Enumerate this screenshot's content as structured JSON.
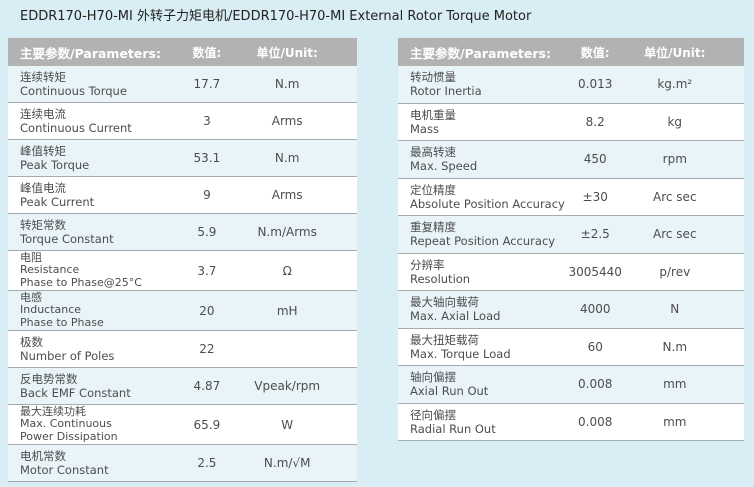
{
  "title": "EDDR170-H70-MI 外转子力矩电机/EDDR170-H70-MI External Rotor Torque Motor",
  "table_header": {
    "parameters": "主要参数/Parameters:",
    "value": "数值:",
    "unit": "单位/Unit:"
  },
  "left_table": {
    "rows": [
      {
        "label_lines": [
          "连续转矩",
          "Continuous Torque"
        ],
        "value": "17.7",
        "unit": "N.m"
      },
      {
        "label_lines": [
          "连续电流",
          "Continuous Current"
        ],
        "value": "3",
        "unit": "Arms"
      },
      {
        "label_lines": [
          "峰值转矩",
          "Peak Torque"
        ],
        "value": "53.1",
        "unit": "N.m"
      },
      {
        "label_lines": [
          "峰值电流",
          "Peak Current"
        ],
        "value": "9",
        "unit": "Arms"
      },
      {
        "label_lines": [
          "转矩常数",
          "Torque Constant"
        ],
        "value": "5.9",
        "unit": "N.m/Arms"
      },
      {
        "label_lines": [
          "电阻",
          "Resistance",
          "Phase to Phase@25°C"
        ],
        "value": "3.7",
        "unit": "Ω"
      },
      {
        "label_lines": [
          "电感",
          "Inductance",
          "Phase to Phase"
        ],
        "value": "20",
        "unit": "mH"
      },
      {
        "label_lines": [
          "极数",
          "Number of Poles"
        ],
        "value": "22",
        "unit": ""
      },
      {
        "label_lines": [
          "反电势常数",
          "Back EMF Constant"
        ],
        "value": "4.87",
        "unit": "Vpeak/rpm"
      },
      {
        "label_lines": [
          "最大连续功耗",
          "Max. Continuous",
          "Power Dissipation"
        ],
        "value": "65.9",
        "unit": "W"
      },
      {
        "label_lines": [
          "电机常数",
          "Motor Constant"
        ],
        "value": "2.5",
        "unit": "N.m/√M"
      }
    ]
  },
  "right_table": {
    "rows": [
      {
        "label_lines": [
          "转动惯量",
          "Rotor Inertia"
        ],
        "value": "0.013",
        "unit": "kg.m²"
      },
      {
        "label_lines": [
          "电机重量",
          "Mass"
        ],
        "value": "8.2",
        "unit": "kg"
      },
      {
        "label_lines": [
          "最高转速",
          "Max. Speed"
        ],
        "value": "450",
        "unit": "rpm"
      },
      {
        "label_lines": [
          "定位精度",
          "Absolute Position Accuracy"
        ],
        "value": "±30",
        "unit": "Arc sec"
      },
      {
        "label_lines": [
          "重复精度",
          "Repeat Position Accuracy"
        ],
        "value": "±2.5",
        "unit": "Arc sec"
      },
      {
        "label_lines": [
          "分辨率",
          "Resolution"
        ],
        "value": "3005440",
        "unit": "p/rev"
      },
      {
        "label_lines": [
          "最大轴向载荷",
          "Max. Axial Load"
        ],
        "value": "4000",
        "unit": "N"
      },
      {
        "label_lines": [
          "最大扭矩载荷",
          "Max. Torque Load"
        ],
        "value": "60",
        "unit": "N.m"
      },
      {
        "label_lines": [
          "轴向偏摆",
          "Axial Run Out"
        ],
        "value": "0.008",
        "unit": "mm"
      },
      {
        "label_lines": [
          "径向偏摆",
          "Radial Run Out"
        ],
        "value": "0.008",
        "unit": "mm"
      }
    ]
  },
  "colors": {
    "page_bg": "#d8edf4",
    "header_bg": "#b2b2b2",
    "header_text": "#ffffff",
    "row_odd_bg": "#e9f4f9",
    "row_even_bg": "#ffffff",
    "divider": "#a3adb1",
    "body_text": "#4d4d4d",
    "title_text": "#222222"
  }
}
